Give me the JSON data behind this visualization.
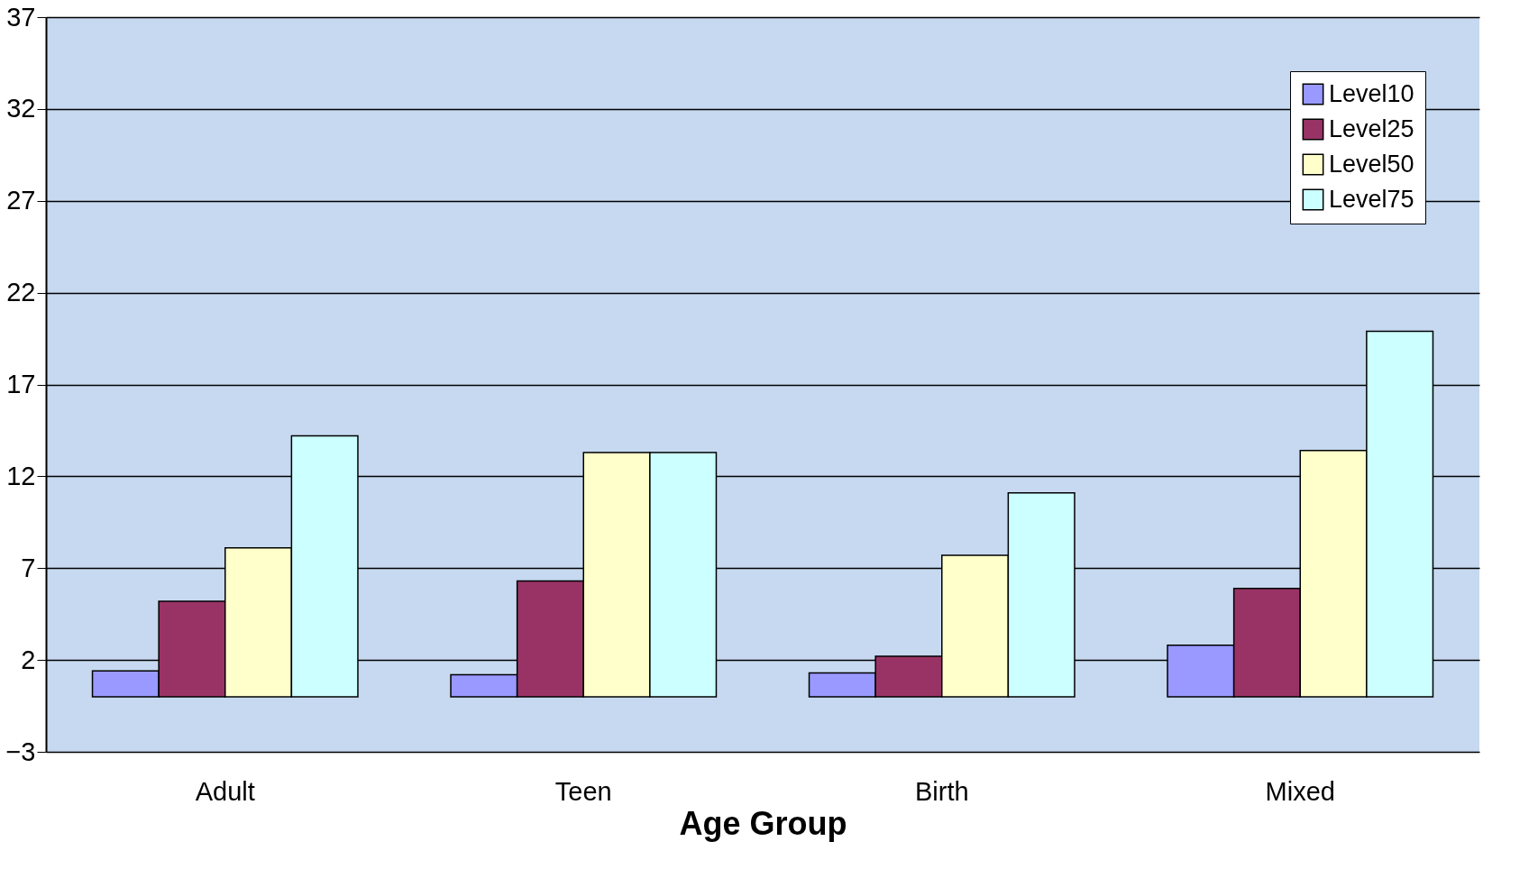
{
  "chart_data": {
    "type": "bar",
    "xlabel": "Age Group",
    "categories": [
      "Adult",
      "Teen",
      "Birth",
      "Mixed"
    ],
    "series": [
      {
        "name": "Level10",
        "color": "#9999ff",
        "values": [
          1.4,
          1.2,
          1.3,
          2.8
        ]
      },
      {
        "name": "Level25",
        "color": "#993366",
        "values": [
          5.2,
          6.3,
          2.2,
          5.9
        ]
      },
      {
        "name": "Level50",
        "color": "#ffffcc",
        "values": [
          8.1,
          13.3,
          7.7,
          13.4
        ]
      },
      {
        "name": "Level75",
        "color": "#ccffff",
        "values": [
          14.2,
          13.3,
          11.1,
          19.9
        ]
      }
    ],
    "ylim": [
      -3,
      37
    ],
    "yticks": [
      -3,
      2,
      7,
      12,
      17,
      22,
      27,
      32,
      37
    ],
    "grid": "y",
    "legend": "top right"
  }
}
